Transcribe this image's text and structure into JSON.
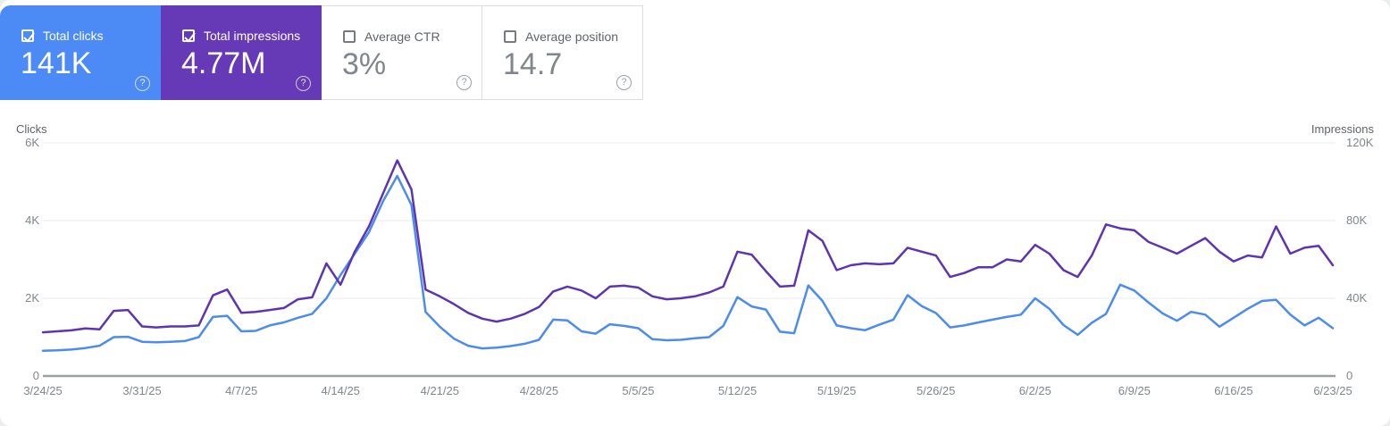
{
  "cards": [
    {
      "label": "Total clicks",
      "value": "141K",
      "checked": true,
      "bg": "#4c8bf5",
      "help_icon": "?"
    },
    {
      "label": "Total impressions",
      "value": "4.77M",
      "checked": true,
      "bg": "#6639b6",
      "help_icon": "?"
    },
    {
      "label": "Average CTR",
      "value": "3%",
      "checked": false,
      "bg": "#ffffff",
      "help_icon": "?"
    },
    {
      "label": "Average position",
      "value": "14.7",
      "checked": false,
      "bg": "#ffffff",
      "help_icon": "?"
    }
  ],
  "colors": {
    "clicks_accent": "#4c8bf5",
    "impressions_accent": "#6639b6",
    "clicks_line": "#4c8bf0",
    "impressions_line": "#5e35b1",
    "grid_line": "#e9ebec",
    "zero_axis_line": "#9aa0a6",
    "axis_text": "#80868b",
    "axis_title_text": "#5f6368",
    "card_border": "#dadce0",
    "page_background": "#eceeee",
    "panel_background": "#ffffff"
  },
  "chart_data": {
    "type": "line",
    "title": "",
    "x_interval": "daily",
    "x_start_date": "3/24/25",
    "x_end_date": "6/23/25",
    "x_tick_labels": [
      "3/24/25",
      "3/31/25",
      "4/7/25",
      "4/14/25",
      "4/21/25",
      "4/28/25",
      "5/5/25",
      "5/12/25",
      "5/19/25",
      "5/26/25",
      "6/2/25",
      "6/9/25",
      "6/16/25",
      "6/23/25"
    ],
    "x_tick_day_indices": [
      0,
      7,
      14,
      21,
      28,
      35,
      42,
      49,
      56,
      63,
      70,
      77,
      84,
      91
    ],
    "left_axis": {
      "title": "Clicks",
      "tick_labels": [
        "0",
        "2K",
        "4K",
        "6K"
      ],
      "tick_values": [
        0,
        2000,
        4000,
        6000
      ],
      "max": 6000
    },
    "right_axis": {
      "title": "Impressions",
      "tick_labels": [
        "0",
        "40K",
        "80K",
        "120K"
      ],
      "tick_values": [
        0,
        40000,
        80000,
        120000
      ],
      "max": 120000
    },
    "grid": "horizontal gridlines only",
    "legend": "none (series toggled via metric cards)",
    "series": [
      {
        "name": "Total clicks",
        "axis": "left",
        "color": "#4c8bf0",
        "values": [
          650,
          660,
          680,
          720,
          780,
          1000,
          1010,
          880,
          870,
          880,
          900,
          1000,
          1520,
          1550,
          1150,
          1160,
          1300,
          1380,
          1500,
          1600,
          2000,
          2600,
          3150,
          3700,
          4500,
          5150,
          4400,
          1650,
          1270,
          960,
          780,
          710,
          730,
          770,
          830,
          930,
          1450,
          1430,
          1150,
          1090,
          1330,
          1290,
          1230,
          950,
          920,
          930,
          970,
          1000,
          1290,
          2030,
          1790,
          1710,
          1140,
          1100,
          2330,
          1930,
          1300,
          1230,
          1180,
          1320,
          1450,
          2080,
          1800,
          1620,
          1250,
          1300,
          1380,
          1450,
          1520,
          1580,
          2000,
          1730,
          1310,
          1060,
          1370,
          1600,
          2350,
          2200,
          1890,
          1610,
          1420,
          1650,
          1580,
          1270,
          1500,
          1730,
          1930,
          1960,
          1580,
          1300,
          1500,
          1230
        ]
      },
      {
        "name": "Total impressions",
        "axis": "right",
        "color": "#5e35b1",
        "values": [
          22500,
          23000,
          23500,
          24500,
          24000,
          33500,
          34000,
          25500,
          25000,
          25500,
          25500,
          26000,
          41500,
          44500,
          32500,
          33000,
          34000,
          35000,
          39500,
          40500,
          58000,
          47000,
          64000,
          77000,
          94000,
          111000,
          96000,
          44500,
          41000,
          37000,
          32500,
          29500,
          28000,
          29500,
          32000,
          35500,
          43500,
          46000,
          44000,
          40000,
          46000,
          46500,
          45500,
          41000,
          39500,
          40000,
          41000,
          43000,
          46000,
          64000,
          62500,
          54000,
          46000,
          46500,
          75000,
          69500,
          54500,
          57000,
          58000,
          57500,
          58000,
          66000,
          64000,
          62000,
          51000,
          53000,
          56000,
          56000,
          60000,
          59000,
          67500,
          63000,
          54500,
          51000,
          62000,
          78000,
          76000,
          75000,
          69000,
          66000,
          63000,
          67000,
          71000,
          64000,
          59000,
          62000,
          61000,
          77000,
          63000,
          66000,
          67000,
          57000
        ]
      }
    ]
  }
}
